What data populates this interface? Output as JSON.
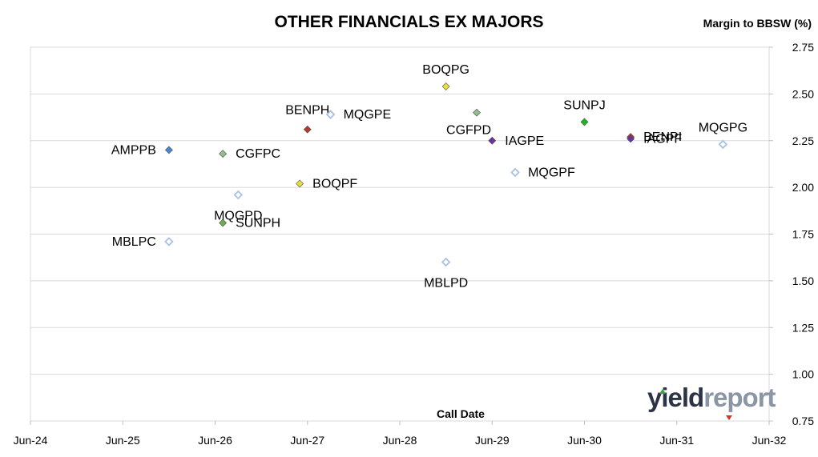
{
  "chart_data": {
    "type": "scatter",
    "title": "OTHER FINANCIALS EX MAJORS",
    "ylabel": "Margin to BBSW (%)",
    "xlabel": "Call Date",
    "xlim": [
      "Jun-24",
      "Jun-32"
    ],
    "ylim": [
      0.75,
      2.75
    ],
    "x_ticks": [
      "Jun-24",
      "Jun-25",
      "Jun-26",
      "Jun-27",
      "Jun-28",
      "Jun-29",
      "Jun-30",
      "Jun-31",
      "Jun-32"
    ],
    "y_ticks": [
      "0.75",
      "1.00",
      "1.25",
      "1.50",
      "1.75",
      "2.00",
      "2.25",
      "2.50",
      "2.75"
    ],
    "grid": "horizontal",
    "y_axis_side": "right",
    "points": [
      {
        "label": "AMPPB",
        "x": "Dec-25",
        "y": 2.2,
        "color": "#4a86d8",
        "label_side": "left"
      },
      {
        "label": "MBLPC",
        "x": "Dec-25",
        "y": 1.71,
        "color": "#a8c1e6",
        "hollow": true,
        "label_side": "left"
      },
      {
        "label": "CGFPC",
        "x": "Jul-26",
        "y": 2.18,
        "color": "#8fbf8c",
        "label_side": "right"
      },
      {
        "label": "SUNPH",
        "x": "Jul-26",
        "y": 1.81,
        "color": "#70ad47",
        "label_side": "right"
      },
      {
        "label": "MQGPD",
        "x": "Sep-26",
        "y": 1.96,
        "color": "#a8c1e6",
        "hollow": true,
        "label_side": "below"
      },
      {
        "label": "BOQPF",
        "x": "May-27",
        "y": 2.02,
        "color": "#e8e03a",
        "label_side": "right"
      },
      {
        "label": "BENPH",
        "x": "Jun-27",
        "y": 2.31,
        "color": "#b23a2a",
        "label_side": "above-left"
      },
      {
        "label": "MQGPE",
        "x": "Sep-27",
        "y": 2.39,
        "color": "#a8c1e6",
        "hollow": true,
        "label_side": "right"
      },
      {
        "label": "BOQPG",
        "x": "Dec-28",
        "y": 2.54,
        "color": "#e8e03a",
        "label_side": "above"
      },
      {
        "label": "MBLPD",
        "x": "Dec-28",
        "y": 1.6,
        "color": "#a8c1e6",
        "hollow": true,
        "label_side": "below"
      },
      {
        "label": "CGFPD",
        "x": "Apr-29",
        "y": 2.4,
        "color": "#8fbf8c",
        "label_side": "below-left"
      },
      {
        "label": "IAGPE",
        "x": "Jun-29",
        "y": 2.25,
        "color": "#7030a0",
        "label_side": "right"
      },
      {
        "label": "MQGPF",
        "x": "Sep-29",
        "y": 2.08,
        "color": "#a8c1e6",
        "hollow": true,
        "label_side": "right"
      },
      {
        "label": "SUNPJ",
        "x": "Jun-30",
        "y": 2.35,
        "color": "#1fb51f",
        "label_side": "above"
      },
      {
        "label": "BENPI",
        "x": "Dec-30",
        "y": 2.27,
        "color": "#b23a2a",
        "label_side": "right"
      },
      {
        "label": "IAGPF",
        "x": "Dec-30",
        "y": 2.26,
        "color": "#7030a0",
        "label_side": "right"
      },
      {
        "label": "MQGPG",
        "x": "Dec-31",
        "y": 2.23,
        "color": "#a8c1e6",
        "hollow": true,
        "label_side": "above"
      }
    ]
  },
  "logo": {
    "yield": "yield",
    "report": "report"
  }
}
